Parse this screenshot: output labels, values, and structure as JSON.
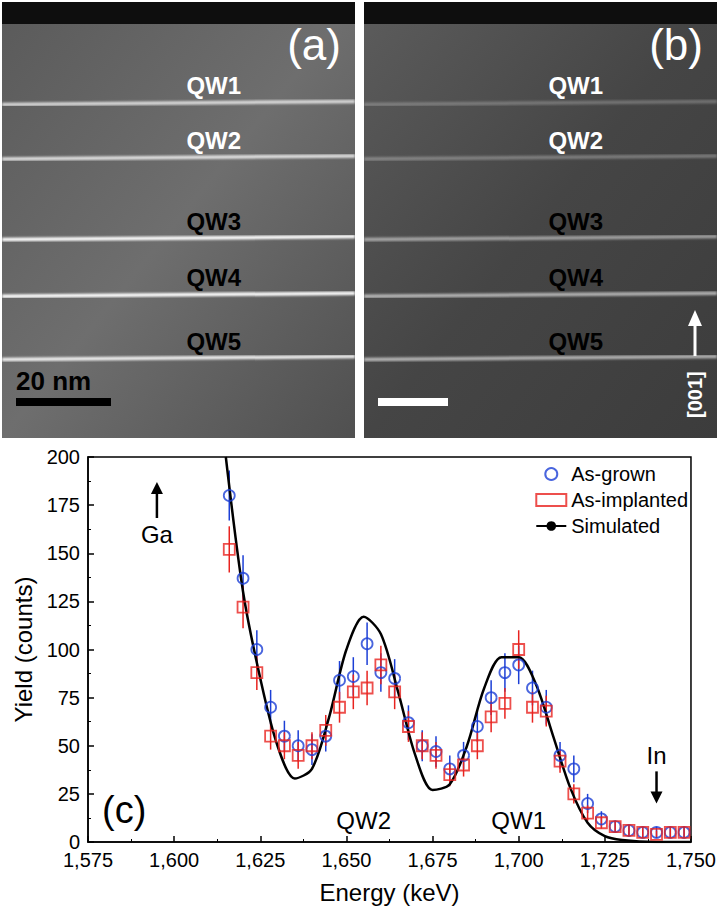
{
  "images": [
    {
      "label": "(a)",
      "wells": [
        "QW1",
        "QW2",
        "QW3",
        "QW4",
        "QW5"
      ],
      "scale_bar": "20 nm"
    },
    {
      "label": "(b)",
      "wells": [
        "QW1",
        "QW2",
        "QW3",
        "QW4",
        "QW5"
      ],
      "direction": "[001]"
    }
  ],
  "chart_data": {
    "type": "scatter",
    "panel": "(c)",
    "x_label": "Energy (keV)",
    "y_label": "Yield (counts)",
    "xlim": [
      1575,
      1750
    ],
    "xticks": [
      1575,
      1600,
      1625,
      1650,
      1675,
      1700,
      1725,
      1750
    ],
    "ylim": [
      0,
      200
    ],
    "yticks": [
      0,
      25,
      50,
      75,
      100,
      125,
      150,
      175,
      200
    ],
    "grid": false,
    "legend": "upper right",
    "series": [
      {
        "name": "As-grown",
        "type": "scatter",
        "marker": "circle",
        "color": "#1c3fd6",
        "x": [
          1616,
          1620,
          1624,
          1628,
          1632,
          1636,
          1640,
          1644,
          1648,
          1652,
          1656,
          1660,
          1664,
          1668,
          1672,
          1676,
          1680,
          1684,
          1688,
          1692,
          1696,
          1700,
          1704,
          1708,
          1712,
          1716,
          1720,
          1724,
          1728,
          1732,
          1736,
          1740,
          1744,
          1748
        ],
        "values": [
          180,
          137,
          100,
          70,
          55,
          50,
          48,
          55,
          84,
          86,
          103,
          88,
          85,
          62,
          50,
          47,
          38,
          45,
          60,
          75,
          88,
          92,
          80,
          70,
          45,
          38,
          20,
          12,
          8,
          6,
          5,
          5,
          5,
          5
        ],
        "errors": [
          13,
          12,
          10,
          9,
          8,
          8,
          8,
          8,
          10,
          10,
          11,
          10,
          10,
          9,
          8,
          8,
          7,
          7,
          8,
          9,
          10,
          10,
          9,
          9,
          7,
          7,
          5,
          4,
          3,
          3,
          3,
          3,
          3,
          3
        ]
      },
      {
        "name": "As-implanted",
        "type": "scatter",
        "marker": "square",
        "color": "#e8231f",
        "x": [
          1616,
          1620,
          1624,
          1628,
          1632,
          1636,
          1640,
          1644,
          1648,
          1652,
          1656,
          1660,
          1664,
          1668,
          1672,
          1676,
          1680,
          1684,
          1688,
          1692,
          1696,
          1700,
          1704,
          1708,
          1712,
          1716,
          1720,
          1724,
          1728,
          1732,
          1736,
          1740,
          1744,
          1748
        ],
        "values": [
          152,
          122,
          88,
          55,
          50,
          45,
          50,
          58,
          70,
          78,
          80,
          92,
          78,
          60,
          50,
          45,
          35,
          40,
          50,
          65,
          72,
          100,
          70,
          68,
          42,
          25,
          15,
          10,
          8,
          6,
          5,
          4,
          5,
          5
        ],
        "errors": [
          12,
          11,
          9,
          7,
          7,
          7,
          7,
          8,
          8,
          9,
          9,
          10,
          9,
          8,
          7,
          7,
          6,
          6,
          7,
          8,
          8,
          10,
          8,
          8,
          6,
          5,
          4,
          3,
          3,
          3,
          3,
          2,
          3,
          3
        ]
      },
      {
        "name": "Simulated",
        "type": "line",
        "line_style": "solid",
        "color": "#000000",
        "x": [
          1615,
          1620,
          1625,
          1630,
          1635,
          1640,
          1645,
          1650,
          1655,
          1660,
          1665,
          1670,
          1675,
          1680,
          1685,
          1690,
          1695,
          1700,
          1705,
          1710,
          1715,
          1720,
          1725,
          1730,
          1740,
          1750
        ],
        "values": [
          200,
          130,
          85,
          50,
          33,
          38,
          65,
          100,
          117,
          108,
          78,
          45,
          27,
          30,
          50,
          80,
          96,
          96,
          82,
          55,
          28,
          10,
          3,
          1,
          0,
          0
        ]
      }
    ],
    "annotations": [
      {
        "text": "Ga",
        "x": 1595,
        "y": 160,
        "arrow": "up"
      },
      {
        "text": "In",
        "x": 1740,
        "y": 45,
        "arrow": "down"
      },
      {
        "text": "QW2",
        "x": 1655,
        "y": 11
      },
      {
        "text": "QW1",
        "x": 1700,
        "y": 11
      }
    ]
  }
}
